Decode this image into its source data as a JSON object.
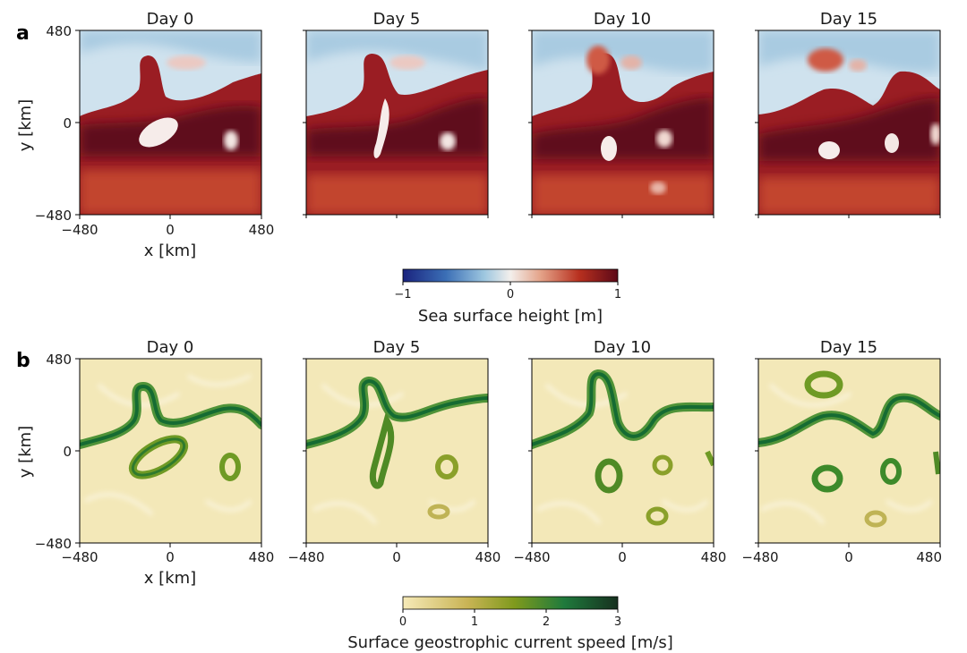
{
  "panel_a": {
    "letter": "a",
    "titles": [
      "Day 0",
      "Day 5",
      "Day 10",
      "Day 15"
    ],
    "y_label": "y [km]",
    "x_label": "x [km]",
    "y_ticks": [
      "480",
      "0",
      "−480"
    ],
    "x_ticks": [
      "−480",
      "0",
      "480"
    ],
    "colorbar": {
      "label": "Sea surface height [m]",
      "ticks": [
        "−1",
        "0",
        "1"
      ],
      "colormap": [
        "#1a237e",
        "#3b6fb6",
        "#9ec7e0",
        "#f3efec",
        "#e4a389",
        "#b8301f",
        "#5c0918"
      ]
    }
  },
  "panel_b": {
    "letter": "b",
    "titles": [
      "Day 0",
      "Day 5",
      "Day 10",
      "Day 15"
    ],
    "y_label": "y [km]",
    "x_label": "x [km]",
    "y_ticks": [
      "480",
      "0",
      "−480"
    ],
    "x_ticks": [
      "−480",
      "0",
      "480"
    ],
    "colorbar": {
      "label": "Surface geostrophic current speed [m/s]",
      "ticks": [
        "0",
        "1",
        "2",
        "3"
      ],
      "colormap": [
        "#f6eab8",
        "#c9b455",
        "#7f9a1d",
        "#1f7a3c",
        "#16301f"
      ]
    }
  }
}
